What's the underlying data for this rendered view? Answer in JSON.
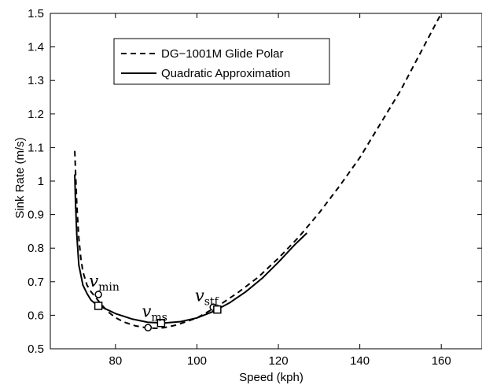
{
  "chart_data": {
    "type": "line",
    "title": "",
    "xlabel": "Speed (kph)",
    "ylabel": "Sink Rate (m/s)",
    "xlim": [
      64,
      170
    ],
    "ylim": [
      0.5,
      1.5
    ],
    "xticks": [
      "80",
      "100",
      "120",
      "140",
      "160"
    ],
    "yticks": [
      "0.5",
      "0.6",
      "0.7",
      "0.8",
      "0.9",
      "1",
      "1.1",
      "1.2",
      "1.3",
      "1.4",
      "1.5"
    ],
    "grid": false,
    "legend_position": "top-left",
    "series": [
      {
        "name": "DG−1001M Glide Polar",
        "style": "dashed",
        "color": "#000000",
        "x": [
          70.0,
          70.5,
          71.0,
          71.5,
          72.0,
          73.0,
          74.0,
          75.0,
          76.0,
          78.0,
          80.0,
          82.0,
          85.0,
          88.0,
          90.0,
          92.0,
          95.0,
          100.0,
          105.0,
          110.0,
          115.0,
          120.0,
          125.0,
          130.0,
          135.0,
          140.0,
          145.0,
          150.0,
          155.0,
          160.0
        ],
        "y": [
          1.09,
          0.93,
          0.83,
          0.77,
          0.73,
          0.69,
          0.67,
          0.655,
          0.64,
          0.612,
          0.593,
          0.58,
          0.568,
          0.562,
          0.561,
          0.563,
          0.571,
          0.592,
          0.626,
          0.667,
          0.713,
          0.77,
          0.833,
          0.905,
          0.985,
          1.07,
          1.17,
          1.27,
          1.385,
          1.5
        ]
      },
      {
        "name": "Quadratic Approximation",
        "style": "solid",
        "color": "#000000",
        "x": [
          70.0,
          70.2,
          70.5,
          71.0,
          72.0,
          73.0,
          74.0,
          75.0,
          76.0,
          80.0,
          84.0,
          88.0,
          92.0,
          96.0,
          100.0,
          104.0,
          108.0,
          112.0,
          116.0,
          120.0,
          124.0,
          127.0
        ],
        "y": [
          1.02,
          0.93,
          0.84,
          0.75,
          0.69,
          0.665,
          0.645,
          0.635,
          0.628,
          0.605,
          0.589,
          0.579,
          0.577,
          0.581,
          0.592,
          0.611,
          0.637,
          0.67,
          0.71,
          0.758,
          0.81,
          0.845
        ]
      }
    ],
    "markers": [
      {
        "shape": "circle",
        "x": 75.8,
        "y": 0.662
      },
      {
        "shape": "circle",
        "x": 88.0,
        "y": 0.563
      },
      {
        "shape": "circle",
        "x": 104.0,
        "y": 0.624
      },
      {
        "shape": "square",
        "x": 75.8,
        "y": 0.628
      },
      {
        "shape": "square",
        "x": 91.2,
        "y": 0.577
      },
      {
        "shape": "square",
        "x": 105.0,
        "y": 0.617
      }
    ],
    "annotations": [
      {
        "name": "v-min",
        "base": "v",
        "sub": "min",
        "x": 73.5,
        "y": 0.685
      },
      {
        "name": "v-ms",
        "base": "v",
        "sub": "ms",
        "x": 86.5,
        "y": 0.595
      },
      {
        "name": "v-stf",
        "base": "v",
        "sub": "stf",
        "x": 99.5,
        "y": 0.642
      }
    ]
  }
}
